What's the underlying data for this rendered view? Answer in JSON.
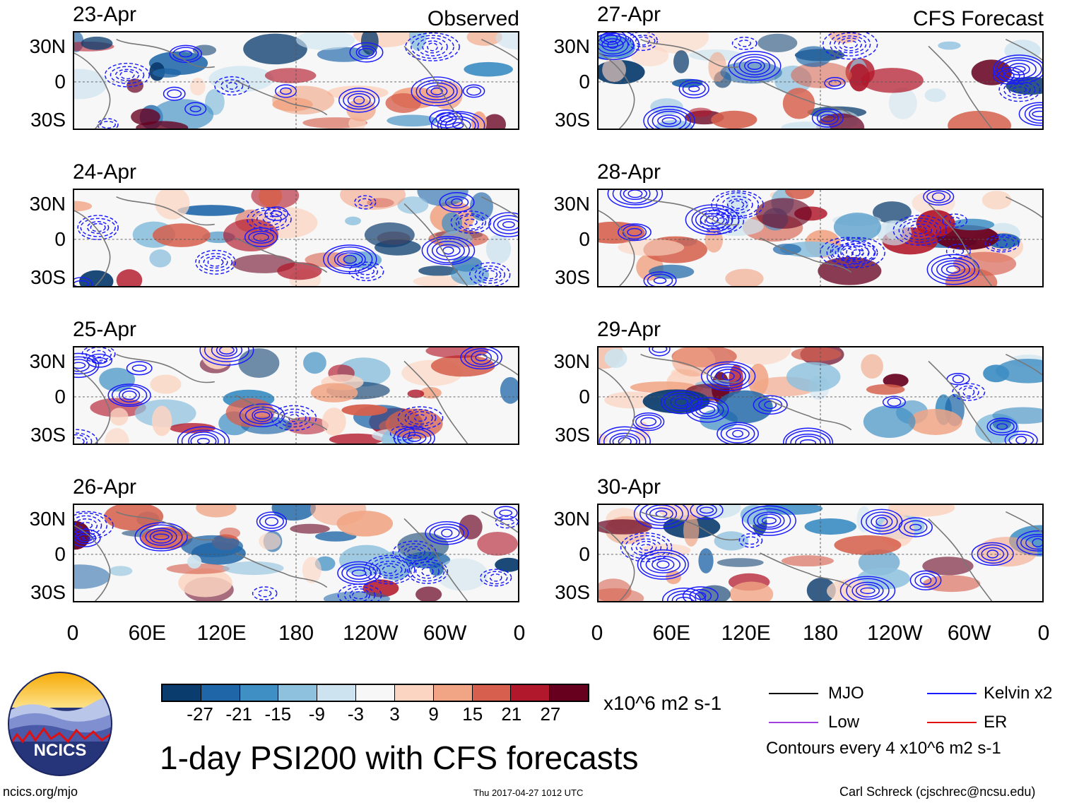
{
  "panels": [
    {
      "date": "23-Apr",
      "tag": "Observed"
    },
    {
      "date": "24-Apr",
      "tag": ""
    },
    {
      "date": "25-Apr",
      "tag": ""
    },
    {
      "date": "26-Apr",
      "tag": ""
    },
    {
      "date": "27-Apr",
      "tag": "CFS Forecast"
    },
    {
      "date": "28-Apr",
      "tag": ""
    },
    {
      "date": "29-Apr",
      "tag": ""
    },
    {
      "date": "30-Apr",
      "tag": ""
    }
  ],
  "lat_labels": [
    "30N",
    "0",
    "30S"
  ],
  "lon_labels": [
    "0",
    "60E",
    "120E",
    "180",
    "120W",
    "60W",
    "0"
  ],
  "colorbar": {
    "labels": [
      "-27",
      "-21",
      "-15",
      "-9",
      "-3",
      "3",
      "9",
      "15",
      "21",
      "27"
    ],
    "colors": [
      "#0b3c6e",
      "#1f66a8",
      "#3f8fc4",
      "#8ec1de",
      "#cde3ef",
      "#f7f7f7",
      "#fbd5c2",
      "#f1a585",
      "#d6604d",
      "#b2182b",
      "#67001f"
    ],
    "unit": "x10^6 m2 s-1"
  },
  "legend": {
    "items": [
      {
        "label": "MJO",
        "color": "#000000"
      },
      {
        "label": "Kelvin x2",
        "color": "#1a1aff"
      },
      {
        "label": "Low",
        "color": "#a040e0"
      },
      {
        "label": "ER",
        "color": "#e01010"
      }
    ],
    "contour_note": "Contours every 4 x10^6 m2 s-1"
  },
  "title": "1-day PSI200 with CFS forecasts",
  "logo_text": "NCICS",
  "footer": {
    "left": "ncics.org/mjo",
    "center": "Thu 2017-04-27 1012 UTC",
    "right": "Carl Schreck (cjschrec@ncsu.edu)"
  },
  "chart_data": {
    "type": "heatmap",
    "title": "1-day PSI200 with CFS forecasts",
    "xlabel": "",
    "ylabel": "",
    "x_ticks": [
      "0",
      "60E",
      "120E",
      "180",
      "120W",
      "60W",
      "0"
    ],
    "y_ticks": [
      "30N",
      "0",
      "30S"
    ],
    "color_levels": [
      -27,
      -21,
      -15,
      -9,
      -3,
      3,
      9,
      15,
      21,
      27
    ],
    "unit": "x10^6 m2 s-1",
    "contour_interval": 4,
    "panels_observed": [
      "23-Apr",
      "24-Apr",
      "25-Apr",
      "26-Apr"
    ],
    "panels_forecast": [
      "27-Apr",
      "28-Apr",
      "29-Apr",
      "30-Apr"
    ]
  }
}
